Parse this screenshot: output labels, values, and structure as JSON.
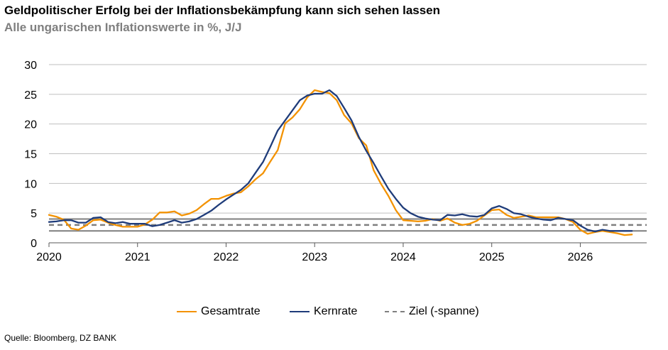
{
  "title": "Geldpolitischer Erfolg bei der Inflationsbekämpfung kann sich sehen lassen",
  "subtitle": "Alle ungarischen Inflationswerte in %, J/J",
  "source": "Quelle: Bloomberg, DZ BANK",
  "colors": {
    "gesamtrate": "#F39200",
    "kernrate": "#1F3C7A",
    "ziel": "#7f7f7f",
    "band": "#7f7f7f",
    "grid": "#bfbfbf"
  },
  "legend": [
    {
      "label": "Gesamtrate",
      "style": "solid",
      "color": "#F39200"
    },
    {
      "label": "Kernrate",
      "style": "solid",
      "color": "#1F3C7A"
    },
    {
      "label": "Ziel (-spanne)",
      "style": "dashed",
      "color": "#7f7f7f"
    }
  ],
  "chart_data": {
    "type": "line",
    "x_ticks": [
      "2020",
      "2021",
      "2022",
      "2023",
      "2024",
      "2025",
      "2026"
    ],
    "xlim": [
      2020.0,
      2026.75
    ],
    "y_ticks": [
      "0",
      "5",
      "10",
      "15",
      "20",
      "25",
      "30"
    ],
    "ylim": [
      0,
      30
    ],
    "grid": "horizontal",
    "legend_position": "bottom",
    "reference_lines": [
      {
        "name": "Ziel",
        "y": 3,
        "style": "dashed"
      },
      {
        "name": "Zielspanne unten",
        "y": 2,
        "style": "solid"
      },
      {
        "name": "Zielspanne oben",
        "y": 4,
        "style": "solid"
      }
    ],
    "series": [
      {
        "name": "Gesamtrate",
        "x": [
          2020.0,
          2020.083,
          2020.167,
          2020.25,
          2020.333,
          2020.417,
          2020.5,
          2020.583,
          2020.667,
          2020.75,
          2020.833,
          2020.917,
          2021.0,
          2021.083,
          2021.167,
          2021.25,
          2021.333,
          2021.417,
          2021.5,
          2021.583,
          2021.667,
          2021.75,
          2021.833,
          2021.917,
          2022.0,
          2022.083,
          2022.167,
          2022.25,
          2022.333,
          2022.417,
          2022.5,
          2022.583,
          2022.667,
          2022.75,
          2022.833,
          2022.917,
          2023.0,
          2023.083,
          2023.167,
          2023.25,
          2023.333,
          2023.417,
          2023.5,
          2023.583,
          2023.667,
          2023.75,
          2023.833,
          2023.917,
          2024.0,
          2024.083,
          2024.167,
          2024.25,
          2024.333,
          2024.417,
          2024.5,
          2024.583,
          2024.667,
          2024.75,
          2024.833,
          2024.917,
          2025.0,
          2025.083,
          2025.167,
          2025.25,
          2025.333,
          2025.417,
          2025.5,
          2025.583,
          2025.667,
          2025.75,
          2025.833,
          2025.917,
          2026.0,
          2026.083,
          2026.167,
          2026.25,
          2026.333,
          2026.417,
          2026.5,
          2026.583
        ],
        "values": [
          4.7,
          4.4,
          3.9,
          2.4,
          2.2,
          2.9,
          3.8,
          3.9,
          3.4,
          3.0,
          2.7,
          2.7,
          2.7,
          3.1,
          3.9,
          5.1,
          5.1,
          5.3,
          4.6,
          4.9,
          5.5,
          6.5,
          7.4,
          7.4,
          7.9,
          8.3,
          8.5,
          9.5,
          10.7,
          11.7,
          13.7,
          15.6,
          20.1,
          21.1,
          22.5,
          24.5,
          25.7,
          25.4,
          25.2,
          24.0,
          21.5,
          20.1,
          17.6,
          16.4,
          12.2,
          9.9,
          7.9,
          5.5,
          3.8,
          3.7,
          3.6,
          3.7,
          4.0,
          3.7,
          4.1,
          3.4,
          3.0,
          3.2,
          3.7,
          4.6,
          5.5,
          5.6,
          4.7,
          4.2,
          4.4,
          4.6,
          4.3,
          4.3,
          4.3,
          4.3,
          4.0,
          3.5,
          2.2,
          1.5,
          1.8,
          2.0,
          1.8,
          1.6,
          1.3,
          1.4
        ]
      },
      {
        "name": "Kernrate",
        "x": [
          2020.0,
          2020.083,
          2020.167,
          2020.25,
          2020.333,
          2020.417,
          2020.5,
          2020.583,
          2020.667,
          2020.75,
          2020.833,
          2020.917,
          2021.0,
          2021.083,
          2021.167,
          2021.25,
          2021.333,
          2021.417,
          2021.5,
          2021.583,
          2021.667,
          2021.75,
          2021.833,
          2021.917,
          2022.0,
          2022.083,
          2022.167,
          2022.25,
          2022.333,
          2022.417,
          2022.5,
          2022.583,
          2022.667,
          2022.75,
          2022.833,
          2022.917,
          2023.0,
          2023.083,
          2023.167,
          2023.25,
          2023.333,
          2023.417,
          2023.5,
          2023.583,
          2023.667,
          2023.75,
          2023.833,
          2023.917,
          2024.0,
          2024.083,
          2024.167,
          2024.25,
          2024.333,
          2024.417,
          2024.5,
          2024.583,
          2024.667,
          2024.75,
          2024.833,
          2024.917,
          2025.0,
          2025.083,
          2025.167,
          2025.25,
          2025.333,
          2025.417,
          2025.5,
          2025.583,
          2025.667,
          2025.75,
          2025.833,
          2025.917,
          2026.0,
          2026.083,
          2026.167,
          2026.25,
          2026.333,
          2026.417,
          2026.5,
          2026.583
        ],
        "values": [
          3.5,
          3.6,
          3.8,
          3.8,
          3.4,
          3.4,
          4.2,
          4.3,
          3.5,
          3.3,
          3.5,
          3.2,
          3.2,
          3.2,
          2.8,
          3.0,
          3.4,
          3.8,
          3.4,
          3.6,
          4.0,
          4.7,
          5.4,
          6.4,
          7.3,
          8.1,
          8.9,
          10.0,
          11.8,
          13.6,
          16.2,
          18.9,
          20.6,
          22.3,
          24.0,
          24.8,
          25.1,
          25.1,
          25.7,
          24.7,
          22.7,
          20.6,
          17.8,
          15.5,
          13.4,
          11.2,
          9.1,
          7.4,
          5.9,
          5.0,
          4.4,
          4.1,
          3.9,
          3.8,
          4.7,
          4.6,
          4.8,
          4.5,
          4.4,
          4.7,
          5.8,
          6.2,
          5.7,
          5.0,
          4.8,
          4.4,
          4.1,
          3.9,
          3.8,
          4.2,
          4.0,
          3.8,
          2.9,
          2.2,
          1.9,
          2.2,
          2.0,
          2.0,
          2.0,
          2.0
        ]
      }
    ]
  }
}
